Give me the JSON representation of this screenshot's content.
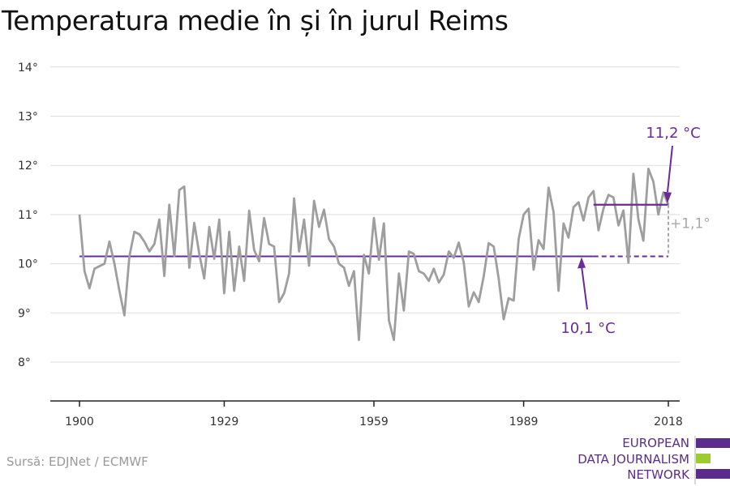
{
  "title": "Temperatura medie în și în jurul Reims",
  "source": "Sursă: EDJNet / ECMWF",
  "logo": {
    "lines": [
      "EUROPEAN",
      "DATA JOURNALISM",
      "NETWORK"
    ],
    "colors": {
      "purple": "#5b2c8e",
      "green": "#9ccc2e"
    }
  },
  "colors": {
    "series": "#9e9e9e",
    "accent": "#6a2a9a",
    "grid": "#dddddd",
    "axis": "#222222",
    "label": "#333333",
    "diff": "#a8a8a8"
  },
  "chart_data": {
    "type": "line",
    "title": "Temperatura medie în și în jurul Reims",
    "xlim": [
      1900,
      2018
    ],
    "ylim": [
      7.3,
      14.3
    ],
    "grid": true,
    "x_ticks": [
      1900,
      1929,
      1959,
      1989,
      2018
    ],
    "y_ticks": [
      8,
      9,
      10,
      11,
      12,
      13,
      14
    ],
    "y_tick_labels": [
      "8°",
      "9°",
      "10°",
      "11°",
      "12°",
      "13°",
      "14°"
    ],
    "x": [
      1900,
      1901,
      1902,
      1903,
      1904,
      1905,
      1906,
      1907,
      1908,
      1909,
      1910,
      1911,
      1912,
      1913,
      1914,
      1915,
      1916,
      1917,
      1918,
      1919,
      1920,
      1921,
      1922,
      1923,
      1924,
      1925,
      1926,
      1927,
      1928,
      1929,
      1930,
      1931,
      1932,
      1933,
      1934,
      1935,
      1936,
      1937,
      1938,
      1939,
      1940,
      1941,
      1942,
      1943,
      1944,
      1945,
      1946,
      1947,
      1948,
      1949,
      1950,
      1951,
      1952,
      1953,
      1954,
      1955,
      1956,
      1957,
      1958,
      1959,
      1960,
      1961,
      1962,
      1963,
      1964,
      1965,
      1966,
      1967,
      1968,
      1969,
      1970,
      1971,
      1972,
      1973,
      1974,
      1975,
      1976,
      1977,
      1978,
      1979,
      1980,
      1981,
      1982,
      1983,
      1984,
      1985,
      1986,
      1987,
      1988,
      1989,
      1990,
      1991,
      1992,
      1993,
      1994,
      1995,
      1996,
      1997,
      1998,
      1999,
      2000,
      2001,
      2002,
      2003,
      2004,
      2005,
      2006,
      2007,
      2008,
      2009,
      2010,
      2011,
      2012,
      2013,
      2014,
      2015,
      2016,
      2017,
      2018
    ],
    "series": [
      {
        "values": [
          11.0,
          9.85,
          9.5,
          9.9,
          9.95,
          10.0,
          10.45,
          10.0,
          9.45,
          8.95,
          10.15,
          10.65,
          10.6,
          10.45,
          10.25,
          10.4,
          10.9,
          9.75,
          11.2,
          10.15,
          11.5,
          11.57,
          9.92,
          10.83,
          10.2,
          9.7,
          10.75,
          10.1,
          10.9,
          9.4,
          10.65,
          9.45,
          10.35,
          9.65,
          11.08,
          10.28,
          10.05,
          10.93,
          10.4,
          10.35,
          9.22,
          9.4,
          9.8,
          11.33,
          10.25,
          10.9,
          9.96,
          11.28,
          10.75,
          11.1,
          10.5,
          10.35,
          10.0,
          9.92,
          9.55,
          9.85,
          8.45,
          10.18,
          9.8,
          10.93,
          10.08,
          10.82,
          8.85,
          8.45,
          9.8,
          9.05,
          10.25,
          10.2,
          9.85,
          9.8,
          9.65,
          9.9,
          9.62,
          9.78,
          10.25,
          10.12,
          10.43,
          10.03,
          9.13,
          9.42,
          9.22,
          9.75,
          10.42,
          10.35,
          9.7,
          8.87,
          9.3,
          9.25,
          10.5,
          11.0,
          11.12,
          9.88,
          10.48,
          10.3,
          11.55,
          11.05,
          9.45,
          10.82,
          10.53,
          11.15,
          11.25,
          10.88,
          11.35,
          11.48,
          10.68,
          11.12,
          11.4,
          11.35,
          10.78,
          11.08,
          10.02,
          11.83,
          10.9,
          10.47,
          11.93,
          11.67,
          11.0,
          11.45,
          11.2
        ]
      }
    ],
    "annotations": [
      {
        "label": "10,1 °C",
        "value": 10.15,
        "x_from": 1900,
        "x_solid_to": 2003,
        "x_to": 2018
      },
      {
        "label": "11,2 °C",
        "value": 11.2,
        "x_from": 2003,
        "x_to": 2018
      },
      {
        "label": "+1,1°"
      }
    ]
  }
}
